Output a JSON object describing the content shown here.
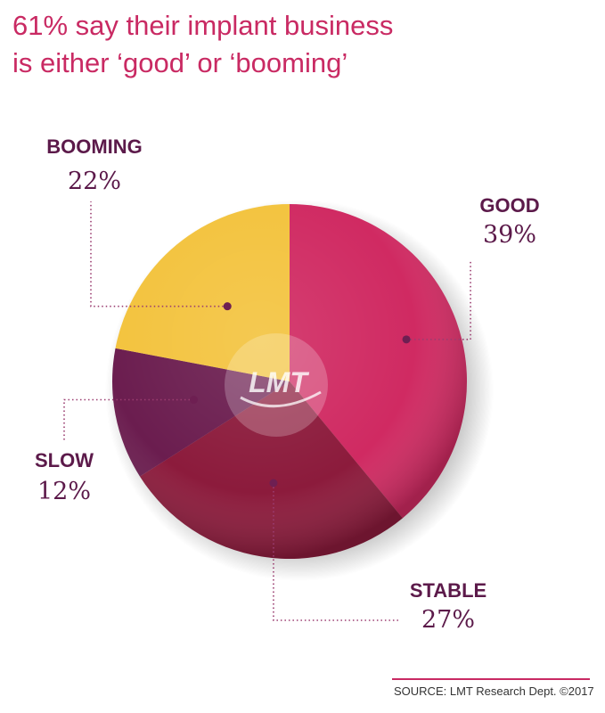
{
  "title": {
    "line1": "61% say their implant business",
    "line2": "is either ‘good’ or ‘booming’"
  },
  "source": "SOURCE: LMT Research Dept. ©2017",
  "logo_text": "LMT",
  "chart_data": {
    "type": "pie",
    "title": "61% say their implant business is either ‘good’ or ‘booming’",
    "slices": [
      {
        "label": "GOOD",
        "value": 39,
        "display": "39%",
        "color": "#d02a62"
      },
      {
        "label": "STABLE",
        "value": 27,
        "display": "27%",
        "color": "#8c1b3c"
      },
      {
        "label": "SLOW",
        "value": 12,
        "display": "12%",
        "color": "#6b1d4f"
      },
      {
        "label": "BOOMING",
        "value": 22,
        "display": "22%",
        "color": "#f3c33e"
      }
    ],
    "start": "12 o'clock",
    "direction": "clockwise",
    "legend": "none"
  }
}
